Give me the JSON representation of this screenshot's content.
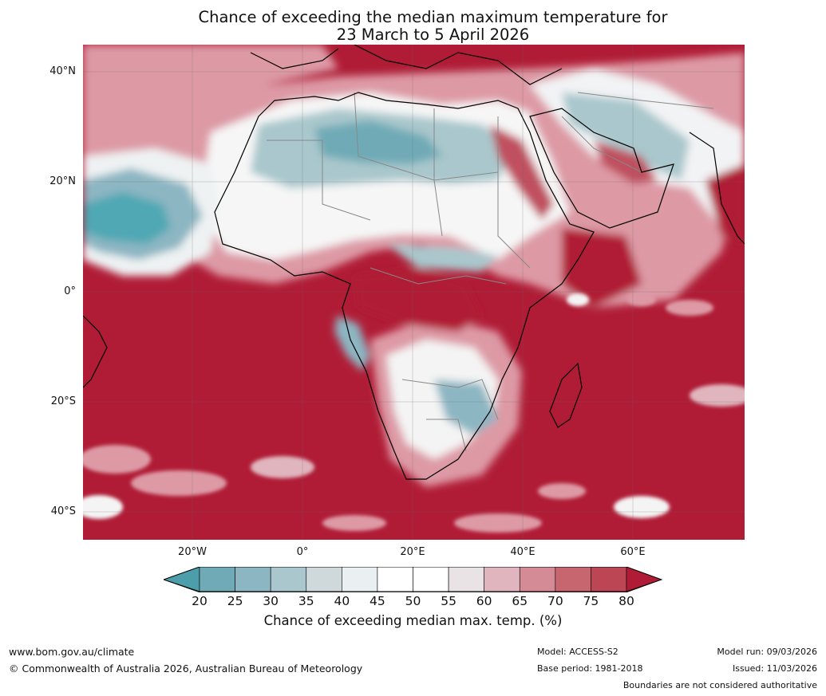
{
  "title_line1": "Chance of exceeding the median maximum temperature for",
  "title_line2": "23 March to 5 April 2026",
  "map": {
    "lat_ticks": [
      "40°N",
      "20°N",
      "0°",
      "20°S",
      "40°S"
    ],
    "lon_ticks": [
      "20°W",
      "0°",
      "20°E",
      "40°E",
      "60°E"
    ],
    "colors": {
      "ocean_warm": "#b01c36",
      "cool_strong": "#4fa8b4",
      "cool_light": "#a9c7cc",
      "neutral": "#ffffff",
      "warm_light": "#dd9aa5",
      "warm_mid": "#c0505f",
      "coast": "#000000",
      "borders": "#888888"
    }
  },
  "colorbar": {
    "ticks": [
      "20",
      "25",
      "30",
      "35",
      "40",
      "45",
      "50",
      "55",
      "60",
      "65",
      "70",
      "75",
      "80"
    ],
    "colors": [
      "#4c9faa",
      "#6faab6",
      "#8cb6c2",
      "#a9c7cc",
      "#cfd9db",
      "#eaeff1",
      "#ffffff",
      "#ffffff",
      "#e9e3e5",
      "#e0b5bd",
      "#d48b95",
      "#c86670",
      "#bd4654",
      "#b01c36"
    ],
    "label": "Chance of exceeding median max. temp. (%)"
  },
  "footer": {
    "website": "www.bom.gov.au/climate",
    "copyright": "© Commonwealth of Australia 2026, Australian Bureau of Meteorology",
    "model": "Model: ACCESS-S2",
    "base_period": "Base period: 1981-2018",
    "model_run": "Model run: 09/03/2026",
    "issued": "Issued: 11/03/2026",
    "disclaimer": "Boundaries are not considered authoritative"
  }
}
